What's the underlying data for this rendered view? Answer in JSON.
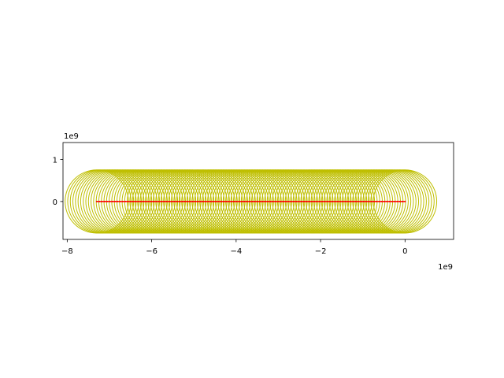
{
  "chart_data": {
    "type": "scatter",
    "title": "",
    "xlabel": "",
    "ylabel": "",
    "x_offset_label": "1e9",
    "y_offset_label": "1e9",
    "xlim": [
      -8.1,
      1.15
    ],
    "ylim": [
      -0.9,
      1.4
    ],
    "aspect": "equal",
    "grid": false,
    "x_ticks": [
      {
        "value": -8,
        "label": "−8"
      },
      {
        "value": -6,
        "label": "−6"
      },
      {
        "value": -4,
        "label": "−4"
      },
      {
        "value": -2,
        "label": "−2"
      },
      {
        "value": 0,
        "label": "0"
      }
    ],
    "y_ticks": [
      {
        "value": 0,
        "label": "0"
      },
      {
        "value": 1,
        "label": "1"
      }
    ],
    "series": [
      {
        "kind": "circles",
        "color": "#bfbf00",
        "radius": 0.75,
        "x_start": -7.3,
        "x_end": 0,
        "count": 120
      },
      {
        "kind": "line",
        "color": "#ff0000",
        "x": [
          -7.3,
          0
        ],
        "y": [
          0,
          0
        ]
      }
    ]
  }
}
